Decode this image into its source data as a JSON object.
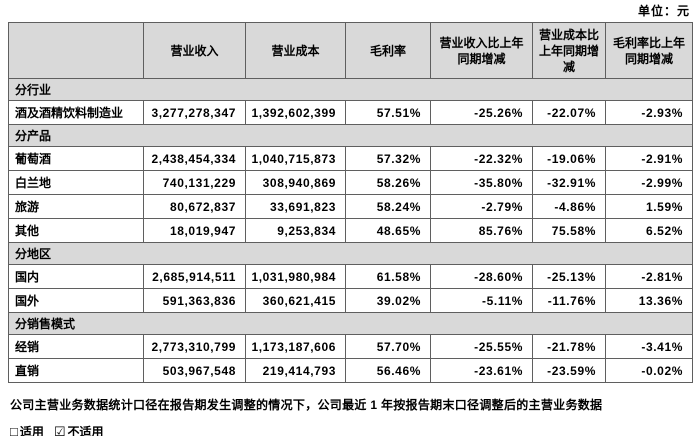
{
  "unit_label": "单位：元",
  "table": {
    "columns": [
      "",
      "营业收入",
      "营业成本",
      "毛利率",
      "营业收入比上年同期增减",
      "营业成本比上年同期增减",
      "毛利率比上年同期增减"
    ],
    "sections": [
      {
        "title": "分行业",
        "rows": [
          {
            "label": "酒及酒精饮料制造业",
            "values": [
              "3,277,278,347",
              "1,392,602,399",
              "57.51%",
              "-25.26%",
              "-22.07%",
              "-2.93%"
            ]
          }
        ]
      },
      {
        "title": "分产品",
        "rows": [
          {
            "label": "葡萄酒",
            "values": [
              "2,438,454,334",
              "1,040,715,873",
              "57.32%",
              "-22.32%",
              "-19.06%",
              "-2.91%"
            ]
          },
          {
            "label": "白兰地",
            "values": [
              "740,131,229",
              "308,940,869",
              "58.26%",
              "-35.80%",
              "-32.91%",
              "-2.99%"
            ]
          },
          {
            "label": "旅游",
            "values": [
              "80,672,837",
              "33,691,823",
              "58.24%",
              "-2.79%",
              "-4.86%",
              "1.59%"
            ]
          },
          {
            "label": "其他",
            "values": [
              "18,019,947",
              "9,253,834",
              "48.65%",
              "85.76%",
              "75.58%",
              "6.52%"
            ]
          }
        ]
      },
      {
        "title": "分地区",
        "rows": [
          {
            "label": "国内",
            "values": [
              "2,685,914,511",
              "1,031,980,984",
              "61.58%",
              "-28.60%",
              "-25.13%",
              "-2.81%"
            ]
          },
          {
            "label": "国外",
            "values": [
              "591,363,836",
              "360,621,415",
              "39.02%",
              "-5.11%",
              "-11.76%",
              "13.36%"
            ]
          }
        ]
      },
      {
        "title": "分销售模式",
        "rows": [
          {
            "label": "经销",
            "values": [
              "2,773,310,799",
              "1,173,187,606",
              "57.70%",
              "-25.55%",
              "-21.78%",
              "-3.41%"
            ]
          },
          {
            "label": "直销",
            "values": [
              "503,967,548",
              "219,414,793",
              "56.46%",
              "-23.61%",
              "-23.59%",
              "-0.02%"
            ]
          }
        ]
      }
    ]
  },
  "footer": {
    "note": "公司主营业务数据统计口径在报告期发生调整的情况下，公司最近 1 年按报告期末口径调整后的主营业务数据",
    "options": [
      {
        "symbol": "□",
        "label": "适用"
      },
      {
        "symbol": "☑",
        "label": "不适用"
      }
    ]
  },
  "colors": {
    "header_bg": "#d9d9d9",
    "border": "#5f5f5f",
    "text": "#000000"
  }
}
